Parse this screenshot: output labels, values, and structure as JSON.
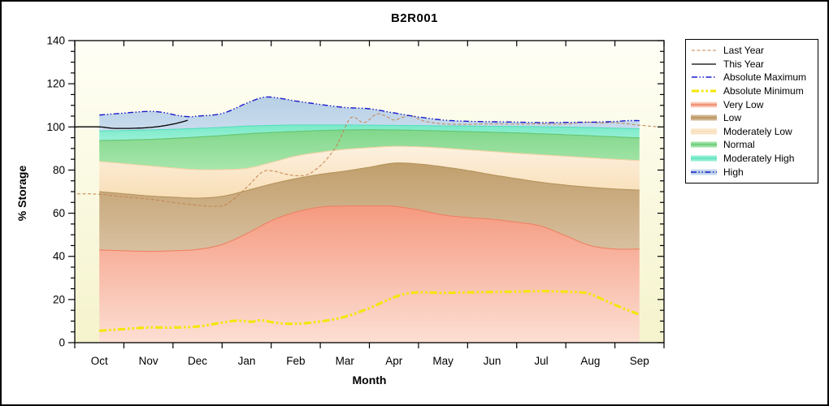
{
  "title": "B2R001",
  "chart_data": {
    "type": "area",
    "title": "B2R001",
    "xlabel": "Month",
    "ylabel": "% Storage",
    "ylim": [
      0,
      140
    ],
    "y_ticks": [
      0,
      20,
      40,
      60,
      80,
      100,
      120,
      140
    ],
    "y_minor_step": 5,
    "months": [
      "Oct",
      "Nov",
      "Dec",
      "Jan",
      "Feb",
      "Mar",
      "Apr",
      "May",
      "Jun",
      "Jul",
      "Aug",
      "Sep"
    ],
    "grid": false,
    "legend_position": "outside-right",
    "colors": {
      "plot_bg_top": "#fffff6",
      "plot_bg_bottom": "#f5f3cc",
      "axis": "#000000"
    },
    "bands": [
      {
        "id": "very_low",
        "label": "Very Low",
        "fill_top": "#f59a80",
        "fill_bottom": "#fcdfd3",
        "edge": "#ee8164",
        "points": [
          [
            0,
            43
          ],
          [
            0.5,
            42.6
          ],
          [
            1,
            42.3
          ],
          [
            1.5,
            42.6
          ],
          [
            2,
            43.2
          ],
          [
            2.5,
            45.5
          ],
          [
            3,
            50.5
          ],
          [
            3.5,
            56.5
          ],
          [
            4,
            60.5
          ],
          [
            4.5,
            62.8
          ],
          [
            5,
            63.3
          ],
          [
            5.5,
            63.4
          ],
          [
            6,
            63.2
          ],
          [
            6.5,
            61.5
          ],
          [
            7,
            59.2
          ],
          [
            7.5,
            58
          ],
          [
            8,
            57.2
          ],
          [
            8.5,
            55.8
          ],
          [
            9,
            54
          ],
          [
            9.5,
            49.5
          ],
          [
            10,
            45
          ],
          [
            10.5,
            43.4
          ],
          [
            11,
            43.4
          ]
        ]
      },
      {
        "id": "low",
        "label": "Low",
        "fill_top": "#c19f6d",
        "fill_bottom": "#d8c0a0",
        "edge": "#b4935a",
        "points": [
          [
            0,
            70
          ],
          [
            0.5,
            69
          ],
          [
            1,
            68
          ],
          [
            1.5,
            67.4
          ],
          [
            2,
            67
          ],
          [
            2.5,
            67.8
          ],
          [
            3,
            70.5
          ],
          [
            3.5,
            73.5
          ],
          [
            4,
            76
          ],
          [
            4.5,
            78
          ],
          [
            5,
            79.5
          ],
          [
            5.5,
            81.3
          ],
          [
            6,
            83.2
          ],
          [
            6.5,
            82.8
          ],
          [
            7,
            81.5
          ],
          [
            7.5,
            79.8
          ],
          [
            8,
            77.8
          ],
          [
            8.5,
            76
          ],
          [
            9,
            74.3
          ],
          [
            9.5,
            73
          ],
          [
            10,
            72
          ],
          [
            10.5,
            71.2
          ],
          [
            11,
            70.7
          ]
        ]
      },
      {
        "id": "mod_low",
        "label": "Moderately Low",
        "fill_top": "#fdf1e0",
        "fill_bottom": "#f8deb6",
        "edge": "#f0d2a4",
        "points": [
          [
            0,
            84
          ],
          [
            0.5,
            83
          ],
          [
            1,
            82
          ],
          [
            1.5,
            81
          ],
          [
            2,
            80.2
          ],
          [
            2.5,
            80.2
          ],
          [
            3,
            80.8
          ],
          [
            3.5,
            83.5
          ],
          [
            4,
            86.5
          ],
          [
            4.5,
            88.3
          ],
          [
            5,
            89.6
          ],
          [
            5.5,
            90.4
          ],
          [
            6,
            91
          ],
          [
            6.5,
            90.8
          ],
          [
            7,
            90.2
          ],
          [
            7.5,
            89.4
          ],
          [
            8,
            88.6
          ],
          [
            8.5,
            87.8
          ],
          [
            9,
            87.1
          ],
          [
            9.5,
            86.4
          ],
          [
            10,
            85.7
          ],
          [
            10.5,
            85
          ],
          [
            11,
            84.4
          ]
        ]
      },
      {
        "id": "normal",
        "label": "Normal",
        "fill_top": "#82d78c",
        "fill_bottom": "#a8e6ac",
        "edge": "#62c66e",
        "points": [
          [
            0,
            93.7
          ],
          [
            0.5,
            93.9
          ],
          [
            1,
            94.2
          ],
          [
            1.5,
            94.7
          ],
          [
            2,
            95.3
          ],
          [
            2.5,
            96
          ],
          [
            3,
            96.8
          ],
          [
            3.5,
            97.4
          ],
          [
            4,
            97.9
          ],
          [
            4.5,
            98.3
          ],
          [
            5,
            98.6
          ],
          [
            5.5,
            98.7
          ],
          [
            6,
            98.6
          ],
          [
            6.5,
            98.4
          ],
          [
            7,
            98.1
          ],
          [
            7.5,
            97.8
          ],
          [
            8,
            97.5
          ],
          [
            8.5,
            97.2
          ],
          [
            9,
            96.8
          ],
          [
            9.5,
            96.4
          ],
          [
            10,
            95.9
          ],
          [
            10.5,
            95.4
          ],
          [
            11,
            94.9
          ]
        ]
      },
      {
        "id": "mod_high",
        "label": "Moderately High",
        "fill_top": "#79eac6",
        "fill_bottom": "#99f0d8",
        "edge": "#55dec0",
        "points": [
          [
            0,
            98.1
          ],
          [
            0.5,
            98.3
          ],
          [
            1,
            98.6
          ],
          [
            1.5,
            98.9
          ],
          [
            2,
            99.3
          ],
          [
            2.5,
            99.8
          ],
          [
            3,
            100.4
          ],
          [
            3.5,
            100.7
          ],
          [
            4,
            100.9
          ],
          [
            4.5,
            100.9
          ],
          [
            5,
            100.9
          ],
          [
            5.5,
            100.8
          ],
          [
            6,
            100.7
          ],
          [
            6.5,
            100.6
          ],
          [
            7,
            100.5
          ],
          [
            7.5,
            100.4
          ],
          [
            8,
            100.3
          ],
          [
            8.5,
            100.2
          ],
          [
            9,
            100.1
          ],
          [
            9.5,
            99.9
          ],
          [
            10,
            99.7
          ],
          [
            10.5,
            99.4
          ],
          [
            11,
            99.1
          ]
        ]
      },
      {
        "id": "high",
        "label": "High",
        "fill_top": "#b7cfe4",
        "fill_bottom": "#c9dcee",
        "edge": "",
        "points": [
          [
            0,
            105.5
          ],
          [
            0.5,
            106.4
          ],
          [
            1,
            107.2
          ],
          [
            1.3,
            106.7
          ],
          [
            1.6,
            105.3
          ],
          [
            1.85,
            104.7
          ],
          [
            2,
            105
          ],
          [
            2.5,
            106.2
          ],
          [
            3,
            111
          ],
          [
            3.3,
            113.5
          ],
          [
            3.5,
            113.8
          ],
          [
            3.8,
            112.8
          ],
          [
            4,
            112
          ],
          [
            4.5,
            110.4
          ],
          [
            5,
            109
          ],
          [
            5.5,
            108.4
          ],
          [
            6,
            106.5
          ],
          [
            6.5,
            104.6
          ],
          [
            7,
            103.2
          ],
          [
            7.5,
            102.6
          ],
          [
            8,
            102.4
          ],
          [
            8.5,
            102.2
          ],
          [
            9,
            102
          ],
          [
            9.5,
            102.1
          ],
          [
            10,
            102.2
          ],
          [
            10.5,
            102.5
          ],
          [
            10.75,
            102.9
          ],
          [
            11,
            102.9
          ]
        ]
      }
    ],
    "lines": [
      {
        "id": "last_year",
        "label": "Last Year",
        "color": "#c5834e",
        "width": 1,
        "dash": "4 2.5",
        "points": [
          [
            -0.45,
            69
          ],
          [
            0,
            68.8
          ],
          [
            0.5,
            67.6
          ],
          [
            1,
            66.6
          ],
          [
            1.5,
            65
          ],
          [
            2,
            63.7
          ],
          [
            2.3,
            63.2
          ],
          [
            2.6,
            64.3
          ],
          [
            3,
            72
          ],
          [
            3.3,
            78.8
          ],
          [
            3.5,
            79.7
          ],
          [
            3.8,
            78.1
          ],
          [
            4,
            77.4
          ],
          [
            4.25,
            78
          ],
          [
            4.5,
            82
          ],
          [
            4.7,
            87
          ],
          [
            4.85,
            92
          ],
          [
            5,
            99.5
          ],
          [
            5.1,
            103.8
          ],
          [
            5.2,
            104.4
          ],
          [
            5.4,
            102
          ],
          [
            5.65,
            106
          ],
          [
            5.85,
            104.8
          ],
          [
            6,
            103.2
          ],
          [
            6.2,
            104.6
          ],
          [
            6.35,
            105.2
          ],
          [
            6.6,
            102.8
          ],
          [
            7,
            101.4
          ],
          [
            7.5,
            101.2
          ],
          [
            8,
            101.4
          ],
          [
            8.5,
            101.3
          ],
          [
            9,
            101.4
          ],
          [
            9.5,
            101.3
          ],
          [
            9.9,
            102.2
          ],
          [
            10.2,
            101.8
          ],
          [
            10.5,
            102
          ],
          [
            11,
            100.8
          ],
          [
            11.5,
            99.8
          ]
        ]
      },
      {
        "id": "this_year",
        "label": "This Year",
        "color": "#000000",
        "width": 1.3,
        "dash": "",
        "points": [
          [
            -0.5,
            100
          ],
          [
            0,
            100
          ],
          [
            0.25,
            99.4
          ],
          [
            0.5,
            99.3
          ],
          [
            0.75,
            99.4
          ],
          [
            1,
            99.7
          ],
          [
            1.25,
            100.3
          ],
          [
            1.5,
            101.3
          ],
          [
            1.7,
            102.4
          ],
          [
            1.8,
            103.1
          ]
        ]
      },
      {
        "id": "abs_max",
        "label": "Absolute Maximum",
        "color": "#1a1acc",
        "width": 1.4,
        "dash": "7 2.5 1.5 2.5 1.5 2.5",
        "points": [
          [
            0,
            105.5
          ],
          [
            0.5,
            106.4
          ],
          [
            1,
            107.2
          ],
          [
            1.3,
            106.7
          ],
          [
            1.6,
            105.3
          ],
          [
            1.85,
            104.7
          ],
          [
            2,
            105
          ],
          [
            2.5,
            106.2
          ],
          [
            3,
            111
          ],
          [
            3.3,
            113.5
          ],
          [
            3.5,
            113.8
          ],
          [
            3.8,
            112.8
          ],
          [
            4,
            112
          ],
          [
            4.5,
            110.4
          ],
          [
            5,
            109
          ],
          [
            5.5,
            108.4
          ],
          [
            6,
            106.5
          ],
          [
            6.5,
            104.6
          ],
          [
            7,
            103.2
          ],
          [
            7.5,
            102.6
          ],
          [
            8,
            102.4
          ],
          [
            8.5,
            102.2
          ],
          [
            9,
            102
          ],
          [
            9.5,
            102.1
          ],
          [
            10,
            102.2
          ],
          [
            10.5,
            102.5
          ],
          [
            10.75,
            102.9
          ],
          [
            11,
            102.9
          ]
        ]
      },
      {
        "id": "abs_min",
        "label": "Absolute Minimum",
        "color": "#f4e600",
        "width": 3,
        "dash": "9 3 2.5 3 2.5 3",
        "points": [
          [
            0,
            5.5
          ],
          [
            0.5,
            6.3
          ],
          [
            1,
            7
          ],
          [
            1.5,
            7
          ],
          [
            2,
            7.5
          ],
          [
            2.5,
            9.3
          ],
          [
            2.8,
            10.2
          ],
          [
            3.1,
            9.7
          ],
          [
            3.3,
            10.4
          ],
          [
            3.6,
            9.2
          ],
          [
            4,
            8.8
          ],
          [
            4.5,
            9.8
          ],
          [
            5,
            12
          ],
          [
            5.5,
            16
          ],
          [
            6,
            21
          ],
          [
            6.4,
            23.2
          ],
          [
            7,
            23.1
          ],
          [
            7.5,
            23.3
          ],
          [
            8,
            23.5
          ],
          [
            8.5,
            23.7
          ],
          [
            9,
            23.9
          ],
          [
            9.4,
            23.7
          ],
          [
            9.8,
            23.3
          ],
          [
            10,
            22.5
          ],
          [
            10.5,
            17.5
          ],
          [
            11,
            13
          ]
        ]
      }
    ],
    "legend": [
      {
        "id": "last_year",
        "label": "Last Year",
        "swatch": "line"
      },
      {
        "id": "this_year",
        "label": "This Year",
        "swatch": "line"
      },
      {
        "id": "abs_max",
        "label": "Absolute Maximum",
        "swatch": "line"
      },
      {
        "id": "abs_min",
        "label": "Absolute Minimum",
        "swatch": "line"
      },
      {
        "id": "very_low",
        "label": "Very Low",
        "swatch": "band"
      },
      {
        "id": "low",
        "label": "Low",
        "swatch": "band"
      },
      {
        "id": "mod_low",
        "label": "Moderately Low",
        "swatch": "band"
      },
      {
        "id": "normal",
        "label": "Normal",
        "swatch": "band"
      },
      {
        "id": "mod_high",
        "label": "Moderately High",
        "swatch": "band"
      },
      {
        "id": "high",
        "label": "High",
        "swatch": "band",
        "overlay": "abs_max"
      }
    ]
  }
}
